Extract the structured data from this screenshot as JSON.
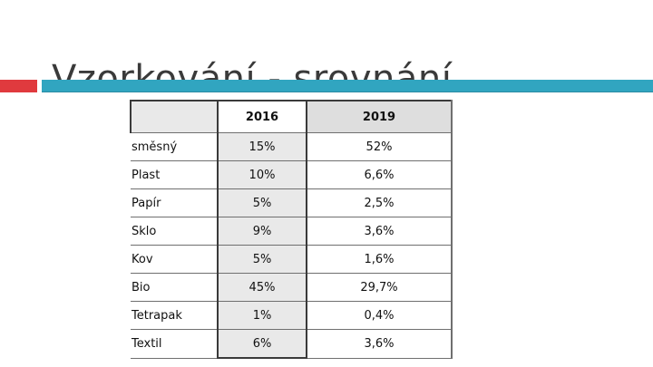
{
  "slide": {
    "title": "Vzorkování - srovnání"
  },
  "colors": {
    "accent_red": "#e03a3e",
    "accent_teal": "#31a5c0"
  },
  "table": {
    "headers": [
      "",
      "2016",
      "2019"
    ],
    "rows": [
      {
        "category": "směsný",
        "v2016": "15%",
        "v2019": "52%"
      },
      {
        "category": "Plast",
        "v2016": "10%",
        "v2019": "6,6%"
      },
      {
        "category": "Papír",
        "v2016": "5%",
        "v2019": "2,5%"
      },
      {
        "category": "Sklo",
        "v2016": "9%",
        "v2019": "3,6%"
      },
      {
        "category": "Kov",
        "v2016": "5%",
        "v2019": "1,6%"
      },
      {
        "category": "Bio",
        "v2016": "45%",
        "v2019": "29,7%"
      },
      {
        "category": "Tetrapak",
        "v2016": "1%",
        "v2019": "0,4%"
      },
      {
        "category": "Textil",
        "v2016": "6%",
        "v2019": "3,6%"
      }
    ]
  }
}
